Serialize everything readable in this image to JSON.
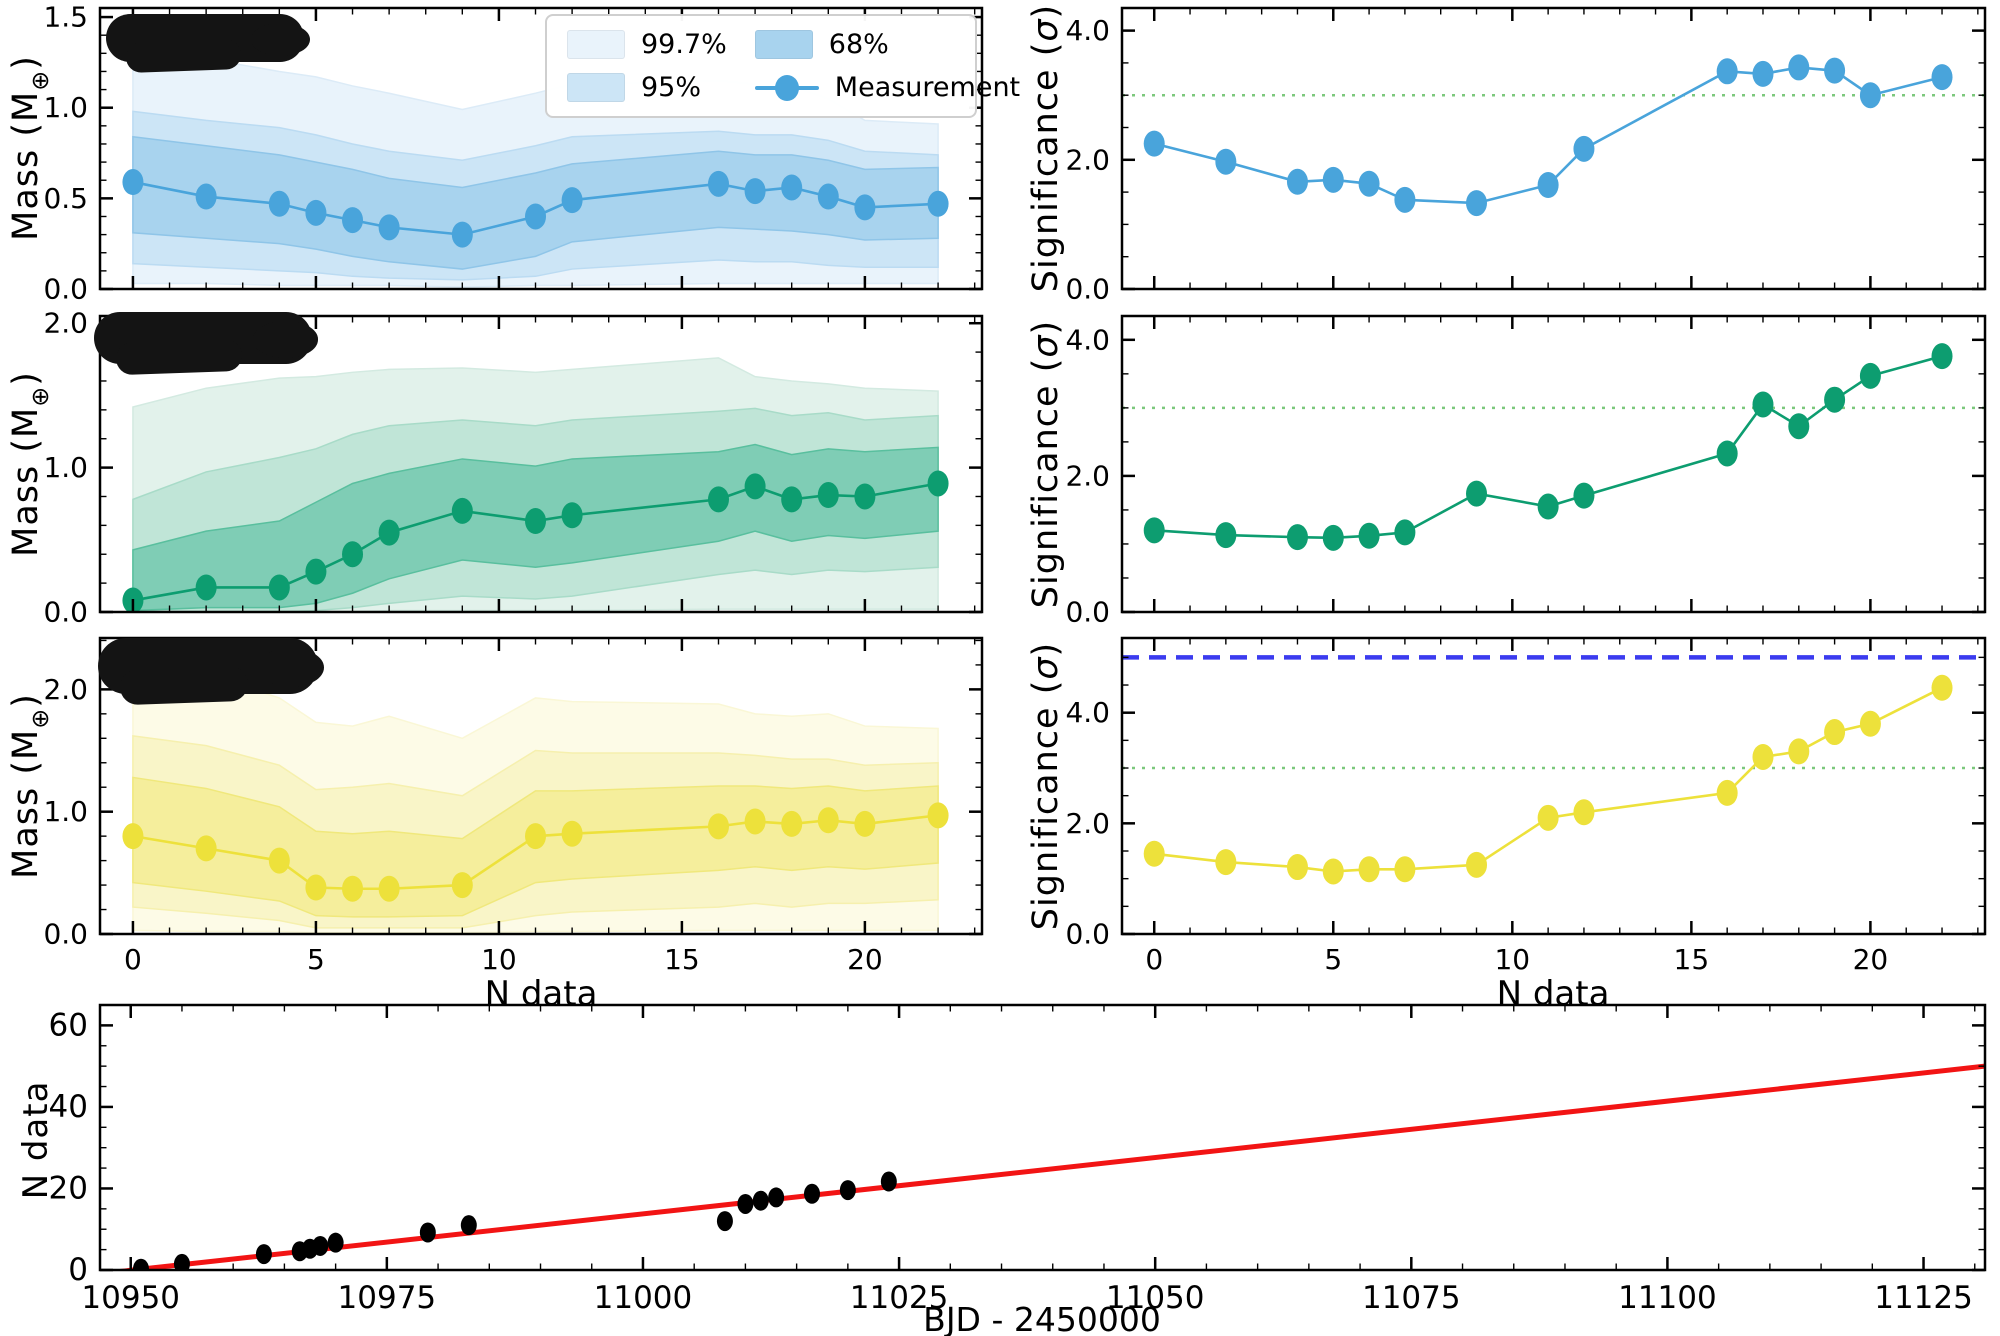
{
  "labels": {
    "mass_ylabel": {
      "prefix": "Mass (M",
      "sub": "⊕",
      "suffix": ")"
    },
    "sig_ylabel": {
      "prefix": "Significance (",
      "sym": "σ",
      "suffix": ")"
    },
    "ndata_label": "N data",
    "bjd_label": "BJD - 2450000"
  },
  "legend": {
    "items": [
      {
        "label": "99.7%",
        "swatch": "#E9F3FB"
      },
      {
        "label": "68%",
        "swatch": "#A8D3EE"
      },
      {
        "label": "95%",
        "swatch": "#CCE5F6"
      },
      {
        "label": "Measurement",
        "marker": true
      }
    ]
  },
  "colors": {
    "blue": "#49A4DB",
    "green": "#0D9D70",
    "yellow": "#EDE13B",
    "dotted_green": "#7CC87C",
    "dashed_blue": "#3B3BEF",
    "red_line": "#F21414",
    "black": "#000000",
    "spine": "#000000"
  },
  "chart_data": [
    {
      "id": "mass_blue",
      "type": "area",
      "ylabel": "Mass (M⊕)",
      "x": [
        0,
        2,
        4,
        5,
        6,
        7,
        9,
        11,
        12,
        16,
        17,
        18,
        19,
        20,
        22
      ],
      "xlim": [
        -0.9,
        23.2
      ],
      "ylim": [
        0,
        1.55
      ],
      "xtick_vals": [
        0,
        5,
        10,
        15,
        20
      ],
      "xtick_labels": [],
      "x_minor": 1,
      "ytick_vals": [
        0,
        0.5,
        1.0,
        1.5
      ],
      "ytick_labels": [
        "0.0",
        "0.5",
        "1.0",
        "1.5"
      ],
      "y_minor": 0.1,
      "series": {
        "name": "Measurement",
        "color": "#49A4DB",
        "values": [
          0.59,
          0.51,
          0.47,
          0.42,
          0.38,
          0.34,
          0.3,
          0.4,
          0.49,
          0.58,
          0.54,
          0.56,
          0.51,
          0.45,
          0.47
        ]
      },
      "bands": [
        {
          "level": "99.7%",
          "color": "#E9F3FB",
          "edge": "#DCEBF7",
          "lo": [
            0.03,
            0.03,
            0.02,
            0.02,
            0.02,
            0.02,
            0.01,
            0.02,
            0.02,
            0.03,
            0.03,
            0.03,
            0.03,
            0.03,
            0.03
          ],
          "hi": [
            1.32,
            1.27,
            1.2,
            1.17,
            1.12,
            1.08,
            0.99,
            1.08,
            1.13,
            1.15,
            1.13,
            1.12,
            1.05,
            0.93,
            0.91
          ]
        },
        {
          "level": "95%",
          "color": "#CCE5F6",
          "edge": "#BBDBF2",
          "lo": [
            0.14,
            0.12,
            0.1,
            0.09,
            0.07,
            0.06,
            0.05,
            0.07,
            0.11,
            0.16,
            0.15,
            0.15,
            0.13,
            0.12,
            0.12
          ],
          "hi": [
            0.98,
            0.93,
            0.89,
            0.85,
            0.8,
            0.76,
            0.71,
            0.79,
            0.84,
            0.87,
            0.85,
            0.85,
            0.82,
            0.76,
            0.74
          ]
        },
        {
          "level": "68%",
          "color": "#A8D3EE",
          "edge": "#8FC5E8",
          "lo": [
            0.31,
            0.28,
            0.25,
            0.22,
            0.18,
            0.15,
            0.11,
            0.18,
            0.26,
            0.34,
            0.33,
            0.32,
            0.3,
            0.27,
            0.28
          ],
          "hi": [
            0.84,
            0.79,
            0.74,
            0.7,
            0.66,
            0.61,
            0.56,
            0.64,
            0.69,
            0.76,
            0.74,
            0.74,
            0.71,
            0.66,
            0.67
          ]
        }
      ]
    },
    {
      "id": "sig_blue",
      "type": "line",
      "ylabel": "Significance (σ)",
      "x": [
        0,
        2,
        4,
        5,
        6,
        7,
        9,
        11,
        12,
        16,
        17,
        18,
        19,
        20,
        22
      ],
      "xlim": [
        -0.9,
        23.2
      ],
      "ylim": [
        0,
        4.35
      ],
      "xtick_vals": [
        0,
        5,
        10,
        15,
        20
      ],
      "xtick_labels": [],
      "x_minor": 1,
      "ytick_vals": [
        0,
        2,
        4
      ],
      "ytick_labels": [
        "0.0",
        "2.0",
        "4.0"
      ],
      "y_minor": 0.5,
      "hlines": [
        {
          "v": 3.0,
          "color": "#7CC87C",
          "dash": "3 7",
          "width": 2.5
        }
      ],
      "series": {
        "name": "Measurement",
        "color": "#49A4DB",
        "values": [
          2.25,
          1.97,
          1.66,
          1.69,
          1.63,
          1.38,
          1.33,
          1.61,
          2.17,
          3.37,
          3.33,
          3.43,
          3.38,
          3.0,
          3.28
        ]
      }
    },
    {
      "id": "mass_green",
      "type": "area",
      "ylabel": "Mass (M⊕)",
      "x": [
        0,
        2,
        4,
        5,
        6,
        7,
        9,
        11,
        12,
        16,
        17,
        18,
        19,
        20,
        22
      ],
      "xlim": [
        -0.9,
        23.2
      ],
      "ylim": [
        0,
        2.05
      ],
      "xtick_vals": [
        0,
        5,
        10,
        15,
        20
      ],
      "xtick_labels": [],
      "x_minor": 1,
      "ytick_vals": [
        0,
        1.0,
        2.0
      ],
      "ytick_labels": [
        "0.0",
        "1.0",
        "2.0"
      ],
      "y_minor": 0.2,
      "series": {
        "name": "Measurement",
        "color": "#0D9D70",
        "values": [
          0.08,
          0.17,
          0.17,
          0.28,
          0.4,
          0.55,
          0.7,
          0.63,
          0.67,
          0.78,
          0.87,
          0.78,
          0.81,
          0.8,
          0.89
        ]
      },
      "bands": [
        {
          "level": "99.7%",
          "color": "#E2F2EB",
          "edge": "#D3EAE1",
          "lo": [
            0.0,
            0.0,
            0.0,
            0.0,
            0.0,
            0.01,
            0.01,
            0.01,
            0.01,
            0.02,
            0.02,
            0.02,
            0.02,
            0.02,
            0.02
          ],
          "hi": [
            1.42,
            1.55,
            1.62,
            1.63,
            1.66,
            1.68,
            1.69,
            1.66,
            1.68,
            1.76,
            1.63,
            1.6,
            1.58,
            1.55,
            1.53
          ]
        },
        {
          "level": "95%",
          "color": "#C0E5D7",
          "edge": "#A8DBC8",
          "lo": [
            0.0,
            0.0,
            0.0,
            0.01,
            0.03,
            0.06,
            0.11,
            0.09,
            0.11,
            0.26,
            0.29,
            0.26,
            0.29,
            0.28,
            0.31
          ],
          "hi": [
            0.78,
            0.97,
            1.07,
            1.13,
            1.23,
            1.29,
            1.33,
            1.29,
            1.33,
            1.39,
            1.41,
            1.36,
            1.38,
            1.33,
            1.36
          ]
        },
        {
          "level": "68%",
          "color": "#7FCDB5",
          "edge": "#59BF9E",
          "lo": [
            0.01,
            0.03,
            0.03,
            0.06,
            0.13,
            0.23,
            0.36,
            0.31,
            0.34,
            0.49,
            0.56,
            0.49,
            0.53,
            0.51,
            0.56
          ],
          "hi": [
            0.43,
            0.56,
            0.63,
            0.76,
            0.89,
            0.96,
            1.06,
            1.01,
            1.06,
            1.11,
            1.16,
            1.09,
            1.13,
            1.11,
            1.14
          ]
        }
      ]
    },
    {
      "id": "sig_green",
      "type": "line",
      "ylabel": "Significance (σ)",
      "x": [
        0,
        2,
        4,
        5,
        6,
        7,
        9,
        11,
        12,
        16,
        17,
        18,
        19,
        20,
        22
      ],
      "xlim": [
        -0.9,
        23.2
      ],
      "ylim": [
        0,
        4.35
      ],
      "xtick_vals": [
        0,
        5,
        10,
        15,
        20
      ],
      "xtick_labels": [],
      "x_minor": 1,
      "ytick_vals": [
        0,
        2,
        4
      ],
      "ytick_labels": [
        "0.0",
        "2.0",
        "4.0"
      ],
      "y_minor": 0.5,
      "hlines": [
        {
          "v": 3.0,
          "color": "#7CC87C",
          "dash": "3 7",
          "width": 2.5
        }
      ],
      "series": {
        "name": "Measurement",
        "color": "#0D9D70",
        "values": [
          1.2,
          1.13,
          1.1,
          1.09,
          1.12,
          1.17,
          1.74,
          1.55,
          1.71,
          2.33,
          3.05,
          2.73,
          3.12,
          3.47,
          3.76
        ]
      }
    },
    {
      "id": "mass_yellow",
      "type": "area",
      "ylabel": "Mass (M⊕)",
      "x": [
        0,
        2,
        4,
        5,
        6,
        7,
        9,
        11,
        12,
        16,
        17,
        18,
        19,
        20,
        22
      ],
      "xlim": [
        -0.9,
        23.2
      ],
      "ylim": [
        0,
        2.42
      ],
      "xtick_vals": [
        0,
        5,
        10,
        15,
        20
      ],
      "xtick_labels": [
        "0",
        "5",
        "10",
        "15",
        "20"
      ],
      "x_minor": 1,
      "ytick_vals": [
        0,
        1.0,
        2.0
      ],
      "ytick_labels": [
        "0.0",
        "1.0",
        "2.0"
      ],
      "y_minor": 0.2,
      "xlabel": "N data",
      "series": {
        "name": "Measurement",
        "color": "#EDE13B",
        "values": [
          0.8,
          0.7,
          0.6,
          0.38,
          0.37,
          0.37,
          0.4,
          0.8,
          0.82,
          0.88,
          0.92,
          0.9,
          0.93,
          0.9,
          0.97
        ]
      },
      "bands": [
        {
          "level": "99.7%",
          "color": "#FDFBE7",
          "edge": "#FAF7D6",
          "lo": [
            0.03,
            0.02,
            0.02,
            0.01,
            0.01,
            0.01,
            0.01,
            0.02,
            0.02,
            0.03,
            0.03,
            0.03,
            0.03,
            0.03,
            0.03
          ],
          "hi": [
            2.22,
            2.12,
            1.93,
            1.73,
            1.7,
            1.78,
            1.6,
            1.93,
            1.9,
            1.88,
            1.8,
            1.78,
            1.8,
            1.7,
            1.68
          ]
        },
        {
          "level": "95%",
          "color": "#F9F5C8",
          "edge": "#F6F0AE",
          "lo": [
            0.22,
            0.17,
            0.11,
            0.05,
            0.05,
            0.05,
            0.05,
            0.15,
            0.18,
            0.22,
            0.25,
            0.22,
            0.25,
            0.25,
            0.28
          ],
          "hi": [
            1.62,
            1.54,
            1.38,
            1.18,
            1.2,
            1.23,
            1.13,
            1.5,
            1.48,
            1.48,
            1.46,
            1.43,
            1.43,
            1.38,
            1.4
          ]
        },
        {
          "level": "68%",
          "color": "#F5EE9C",
          "edge": "#F0E87C",
          "lo": [
            0.42,
            0.35,
            0.27,
            0.15,
            0.14,
            0.14,
            0.15,
            0.42,
            0.45,
            0.52,
            0.55,
            0.52,
            0.55,
            0.53,
            0.58
          ],
          "hi": [
            1.28,
            1.19,
            1.04,
            0.84,
            0.82,
            0.84,
            0.78,
            1.17,
            1.17,
            1.21,
            1.21,
            1.19,
            1.21,
            1.17,
            1.21
          ]
        }
      ]
    },
    {
      "id": "sig_yellow",
      "type": "line",
      "ylabel": "Significance (σ)",
      "x": [
        0,
        2,
        4,
        5,
        6,
        7,
        9,
        11,
        12,
        16,
        17,
        18,
        19,
        20,
        22
      ],
      "xlim": [
        -0.9,
        23.2
      ],
      "ylim": [
        0,
        5.35
      ],
      "xtick_vals": [
        0,
        5,
        10,
        15,
        20
      ],
      "xtick_labels": [
        "0",
        "5",
        "10",
        "15",
        "20"
      ],
      "x_minor": 1,
      "ytick_vals": [
        0,
        2,
        4
      ],
      "ytick_labels": [
        "0.0",
        "2.0",
        "4.0"
      ],
      "y_minor": 0.5,
      "xlabel": "N data",
      "hlines": [
        {
          "v": 5.0,
          "color": "#3B3BEF",
          "dash": "17 10",
          "width": 4.5
        },
        {
          "v": 3.0,
          "color": "#7CC87C",
          "dash": "3 7",
          "width": 2.5
        }
      ],
      "series": {
        "name": "Measurement",
        "color": "#EDE13B",
        "values": [
          1.45,
          1.3,
          1.21,
          1.13,
          1.17,
          1.17,
          1.25,
          2.1,
          2.2,
          2.55,
          3.2,
          3.3,
          3.65,
          3.8,
          4.45
        ]
      }
    },
    {
      "id": "timeline",
      "type": "scatter",
      "ylabel": "N data",
      "xlabel": "BJD - 2450000",
      "xlim": [
        10947,
        11131
      ],
      "ylim": [
        0,
        65
      ],
      "xtick_vals": [
        10950,
        10975,
        11000,
        11025,
        11050,
        11075,
        11100,
        11125
      ],
      "xtick_labels": [
        "10950",
        "10975",
        "11000",
        "11025",
        "11050",
        "11075",
        "11100",
        "11125"
      ],
      "x_minor": 5,
      "ytick_vals": [
        0,
        20,
        40,
        60
      ],
      "ytick_labels": [
        "0",
        "20",
        "40",
        "60"
      ],
      "y_minor": 5,
      "points": {
        "color": "#000000",
        "x": [
          10951,
          10955,
          10963,
          10966.5,
          10967.5,
          10968.5,
          10970,
          10979,
          10983,
          11008,
          11010,
          11011.5,
          11013,
          11016.5,
          11020,
          11024
        ],
        "y": [
          0.3,
          1.5,
          3.9,
          4.6,
          5.2,
          5.9,
          6.7,
          9.2,
          11.0,
          12.0,
          16.2,
          17.0,
          17.8,
          18.7,
          19.6,
          21.7
        ]
      },
      "fit_line": {
        "color": "#F21414",
        "x": [
          10947,
          11131
        ],
        "y": [
          -0.9,
          50
        ]
      }
    }
  ]
}
